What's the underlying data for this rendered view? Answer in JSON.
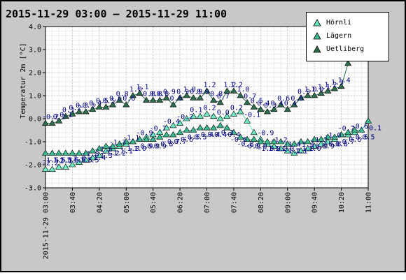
{
  "title": "2015-11-29 03:00 – 2015-11-29 11:00",
  "chart_data": {
    "type": "scatter",
    "ylabel": "Temperatur 2m [°C]",
    "xlabel": "",
    "ylim": [
      -3.0,
      4.0
    ],
    "y_ticks": [
      "4.0",
      "3.0",
      "2.0",
      "1.0",
      "0.0",
      "-1.0",
      "-2.0",
      "-3.0"
    ],
    "x_range": [
      "03:00",
      "11:00"
    ],
    "x_ticks": [
      "2015-11-29 03:00",
      "03:40",
      "04:20",
      "05:00",
      "05:40",
      "06:20",
      "07:00",
      "07:40",
      "08:20",
      "09:00",
      "09:40",
      "10:20",
      "11:00"
    ],
    "grid": true,
    "legend_position": "top-right",
    "series": [
      {
        "name": "Hörnli",
        "color": "#6ee8c0",
        "label_stride": 2,
        "x": [
          "03:00",
          "03:10",
          "03:20",
          "03:30",
          "03:40",
          "03:50",
          "04:00",
          "04:10",
          "04:20",
          "04:30",
          "04:40",
          "04:50",
          "05:00",
          "05:10",
          "05:20",
          "05:30",
          "05:40",
          "05:50",
          "06:00",
          "06:10",
          "06:20",
          "06:30",
          "06:40",
          "06:50",
          "07:00",
          "07:10",
          "07:20",
          "07:30",
          "07:40",
          "07:50",
          "08:00",
          "08:10",
          "08:20",
          "08:30",
          "08:40",
          "08:50",
          "09:00",
          "09:10",
          "09:20",
          "09:30",
          "09:40",
          "09:50",
          "10:00",
          "10:10",
          "10:20",
          "10:30",
          "10:40"
        ],
        "values": [
          -2.2,
          -2.2,
          -2.1,
          -2.1,
          -2.0,
          -1.9,
          -1.8,
          -1.7,
          -1.6,
          -1.4,
          -1.3,
          -1.2,
          -1.1,
          -1.0,
          -0.9,
          -0.8,
          -0.7,
          -0.6,
          -0.4,
          -0.3,
          -0.2,
          0.0,
          0.1,
          0.1,
          0.2,
          0.1,
          0.0,
          0.1,
          0.2,
          0.3,
          -0.1,
          -0.6,
          -0.9,
          -1.1,
          -1.2,
          -1.3,
          -1.4,
          -1.5,
          -1.4,
          -1.3,
          -1.2,
          -1.1,
          -1.0,
          -0.9,
          -0.7,
          -0.7,
          -0.6
        ],
        "labels": [
          "-2.2",
          "-2.2",
          "-2.1",
          "-2.1",
          "-2.0",
          "-1.9",
          "-1.8",
          "-1.7",
          "-1.6",
          "-1.4",
          "-1.3",
          "-1.2",
          "-1.1",
          "-1.0",
          "-0.9",
          "-0.8",
          "-0.7",
          "-0.6",
          "-0.4",
          "-0.3",
          "-0.2",
          "0.0",
          "0.1",
          "0.1",
          "0.2",
          "0.1",
          "0.0",
          "0.1",
          "0.2",
          "0.3",
          "-0.1",
          "-0.6",
          "-0.9",
          "-1.1",
          "-1.2",
          "-1.3",
          "-1.4",
          "-1.5",
          "-1.4",
          "-1.3",
          "-1.2",
          "-1.1",
          "-1.0",
          "-0.9",
          "-0.7",
          "-0.7",
          "-0.6"
        ]
      },
      {
        "name": "Lägern",
        "color": "#3cb890",
        "label_stride": 1,
        "x": [
          "03:00",
          "03:10",
          "03:20",
          "03:30",
          "03:40",
          "03:50",
          "04:00",
          "04:10",
          "04:20",
          "04:30",
          "04:40",
          "04:50",
          "05:00",
          "05:10",
          "05:20",
          "05:30",
          "05:40",
          "05:50",
          "06:00",
          "06:10",
          "06:20",
          "06:30",
          "06:40",
          "06:50",
          "07:00",
          "07:10",
          "07:20",
          "07:30",
          "07:40",
          "07:50",
          "08:00",
          "08:10",
          "08:20",
          "08:30",
          "08:40",
          "08:50",
          "09:00",
          "09:10",
          "09:20",
          "09:30",
          "09:40",
          "09:50",
          "10:00",
          "10:10",
          "10:20",
          "10:30",
          "10:40",
          "10:50",
          "11:00"
        ],
        "values": [
          -1.5,
          -1.5,
          -1.5,
          -1.5,
          -1.5,
          -1.5,
          -1.5,
          -1.4,
          -1.3,
          -1.2,
          -1.2,
          -1.1,
          -1.0,
          -1.0,
          -0.9,
          -0.9,
          -0.9,
          -0.8,
          -0.7,
          -0.7,
          -0.6,
          -0.5,
          -0.5,
          -0.4,
          -0.4,
          -0.4,
          -0.3,
          -0.4,
          -0.6,
          -0.8,
          -0.9,
          -0.9,
          -1.0,
          -1.0,
          -1.0,
          -1.0,
          -1.1,
          -1.1,
          -1.0,
          -1.0,
          -0.9,
          -0.9,
          -0.8,
          -0.8,
          -0.7,
          -0.6,
          -0.5,
          -0.5,
          -0.1
        ],
        "labels": [
          "-1.5",
          "-1.5",
          "-1.5",
          "-1.5",
          "-1.5",
          "-1.5",
          "-1.5",
          "-1.4",
          "-1.3",
          "-1.2",
          "-1.2",
          "-1.1",
          "-1.0",
          "-1.0",
          "-0.9",
          "-0.9",
          "-0.9",
          "-0.8",
          "-0.7",
          "-0.7",
          "-0.6",
          "-0.5",
          "-0.5",
          "-0.4",
          "-0.4",
          "-0.4",
          "-0.3",
          "-0.4",
          "-0.6",
          "-0.8",
          "-0.9",
          "-0.9",
          "-1.0",
          "-1.0",
          "-1.0",
          "-1.0",
          "-1.1",
          "-1.1",
          "-1.0",
          "-1.0",
          "-0.9",
          "-0.9",
          "-0.8",
          "-0.8",
          "-0.7",
          "-0.6",
          "-0.5",
          "-0.5",
          "-0.1"
        ]
      },
      {
        "name": "Uetliberg",
        "color": "#2e6e4e",
        "label_stride": 1,
        "x": [
          "03:00",
          "03:10",
          "03:20",
          "03:30",
          "03:40",
          "03:50",
          "04:00",
          "04:10",
          "04:20",
          "04:30",
          "04:40",
          "04:50",
          "05:00",
          "05:10",
          "05:20",
          "05:30",
          "05:40",
          "05:50",
          "06:00",
          "06:10",
          "06:20",
          "06:30",
          "06:40",
          "06:50",
          "07:00",
          "07:10",
          "07:20",
          "07:30",
          "07:40",
          "07:50",
          "08:00",
          "08:10",
          "08:20",
          "08:30",
          "08:40",
          "08:50",
          "09:00",
          "09:10",
          "09:20",
          "09:30",
          "09:40",
          "09:50",
          "10:00",
          "10:10",
          "10:20",
          "10:30",
          "10:40"
        ],
        "values": [
          -0.2,
          -0.2,
          -0.1,
          0.1,
          0.2,
          0.3,
          0.3,
          0.4,
          0.5,
          0.5,
          0.6,
          0.8,
          0.6,
          1.0,
          1.1,
          0.8,
          0.8,
          0.8,
          0.9,
          0.6,
          0.9,
          1.0,
          0.9,
          0.9,
          1.2,
          0.8,
          0.7,
          1.2,
          1.2,
          1.0,
          0.7,
          0.5,
          0.4,
          0.3,
          0.4,
          0.6,
          0.4,
          0.6,
          0.9,
          1.0,
          1.0,
          1.1,
          1.2,
          1.3,
          1.4,
          2.4,
          3.0
        ],
        "labels": [
          "-0.2",
          "-0.2",
          "-0.1",
          "0.1",
          "0.2",
          "0.3",
          "0.3",
          "0.4",
          "0.5",
          "0.5",
          "0.6",
          "0.8",
          "0.6",
          "1.0",
          "1.1",
          "0.8",
          "0.8",
          "0.8",
          "0.9",
          "0.6",
          "0.9",
          "1.0",
          "0.9",
          "0.9",
          "1.2",
          "0.8",
          "0.7",
          "1.2",
          "1.2",
          "1.0",
          "0.7",
          "0.5",
          "0.4",
          "0.3",
          "0.4",
          "0.6",
          "0.4",
          "0.6",
          "0.9",
          "1.0",
          "1.0",
          "1.1",
          "1.2",
          "1.3",
          "1.4",
          "2.4",
          "3.0"
        ]
      }
    ]
  },
  "colors": {
    "frame": "#c8c8c8",
    "plot_background": "#ffffff",
    "grid": "#d0d0d0",
    "value_labels": "#000080",
    "marker_outline": "#000000"
  }
}
